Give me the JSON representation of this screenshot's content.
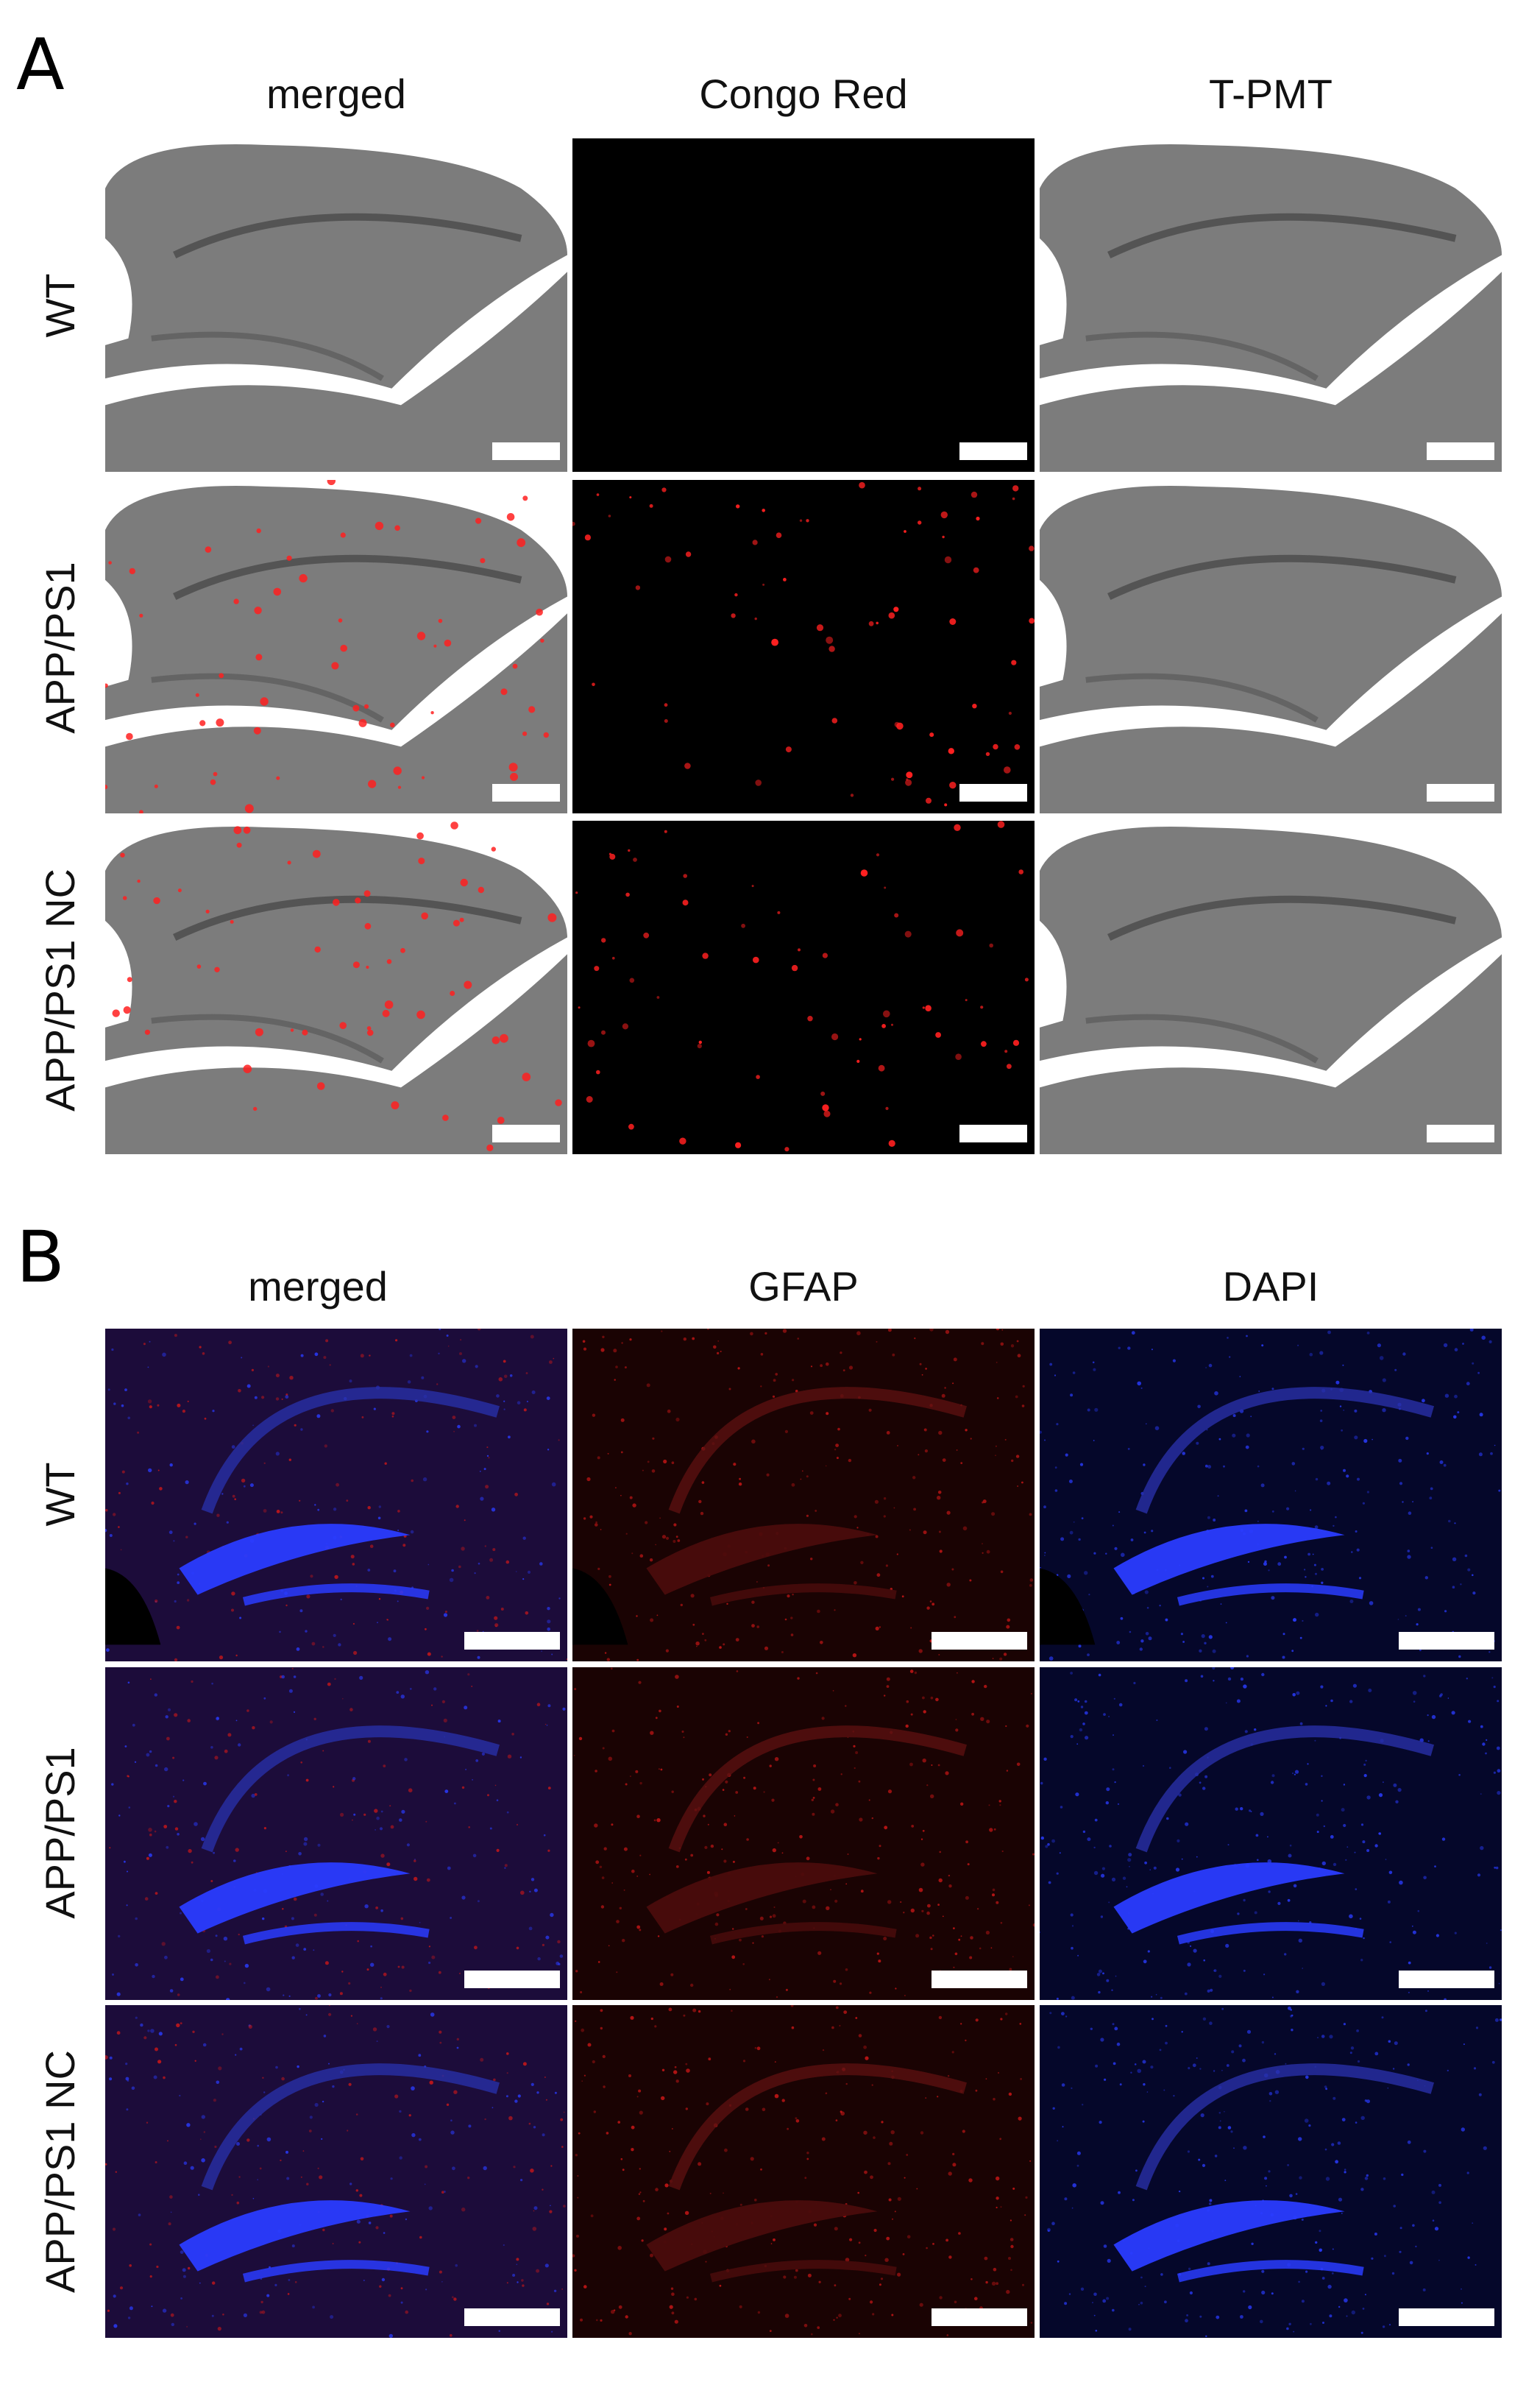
{
  "panels": [
    {
      "letter": "A",
      "columns": [
        "merged",
        "Congo Red",
        "T-PMT"
      ],
      "rows": [
        "WT",
        "APP/PS1",
        "APP/PS1 NC"
      ],
      "tile_types": [
        [
          "gray-merged-wt",
          "black",
          "gray"
        ],
        [
          "gray-merged-red",
          "red-dots",
          "gray"
        ],
        [
          "gray-merged-red",
          "red-dots",
          "gray"
        ]
      ]
    },
    {
      "letter": "B",
      "columns": [
        "merged",
        "GFAP",
        "DAPI"
      ],
      "rows": [
        "WT",
        "APP/PS1",
        "APP/PS1 NC"
      ],
      "tile_types": [
        [
          "purple",
          "red-fluor",
          "blue-fluor"
        ],
        [
          "purple",
          "red-fluor",
          "blue-fluor"
        ],
        [
          "purple",
          "red-fluor",
          "blue-fluor"
        ]
      ]
    }
  ],
  "colors": {
    "background": "#ffffff",
    "gray_tissue": "#7c7c7c",
    "congo_red": "#ff2020",
    "gfap_red": "#d01818",
    "dapi_blue": "#2a3cff",
    "scalebar": "#ffffff"
  }
}
